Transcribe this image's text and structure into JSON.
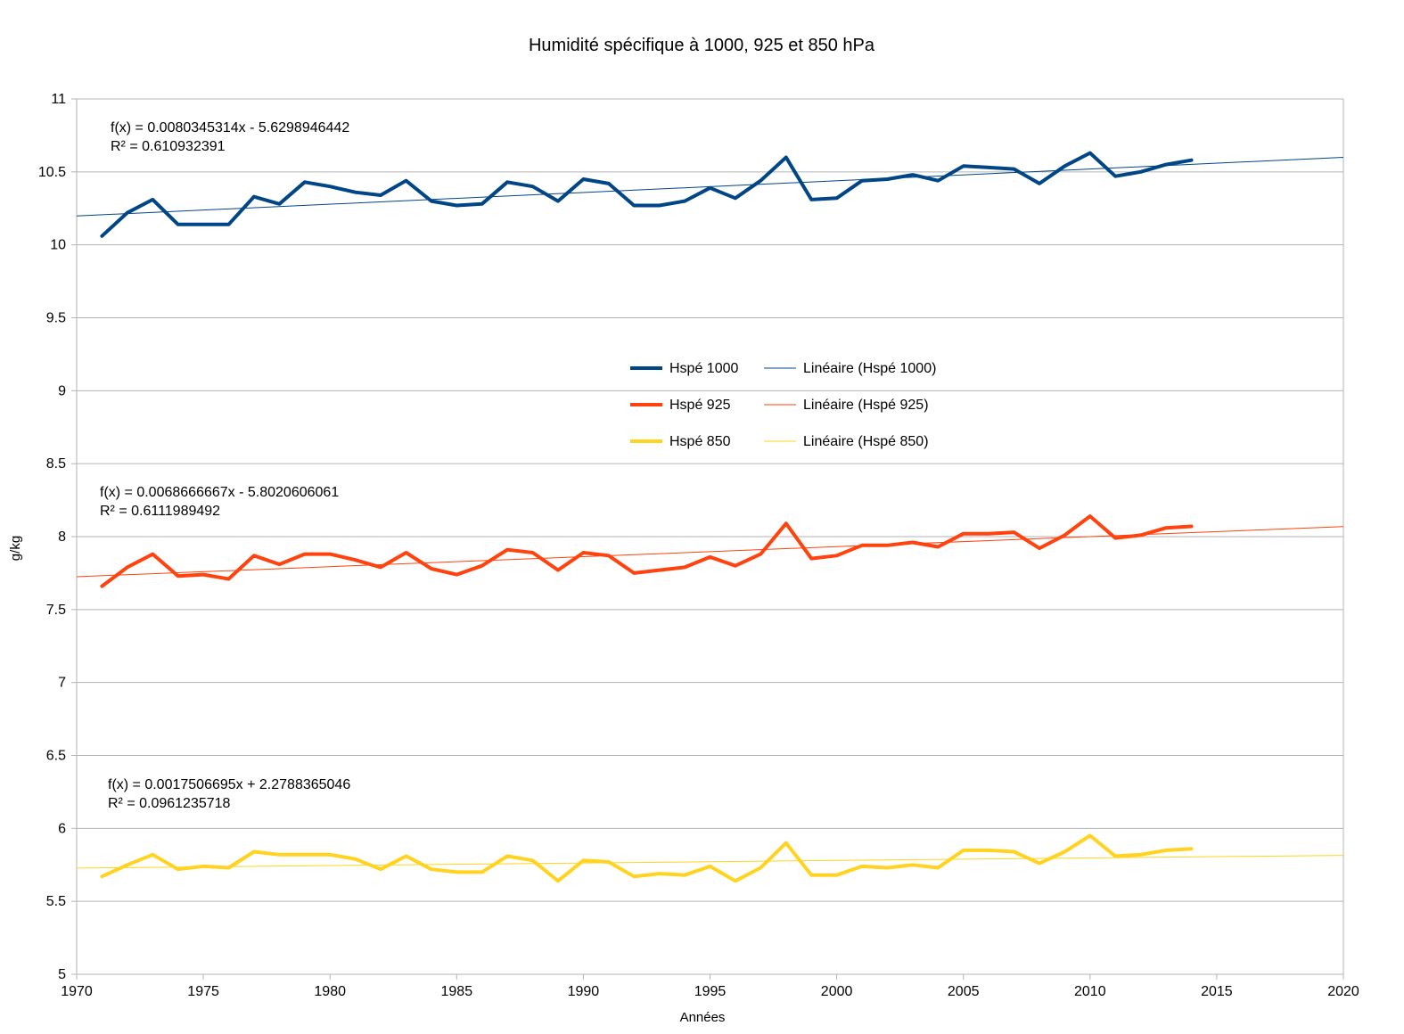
{
  "chart_data": {
    "type": "line",
    "title": "Humidité spécifique à 1000, 925 et 850 hPa",
    "xlabel": "Années",
    "ylabel": "g/kg",
    "xlim": [
      1970,
      2020
    ],
    "ylim": [
      5,
      11
    ],
    "x_ticks": [
      1970,
      1975,
      1980,
      1985,
      1990,
      1995,
      2000,
      2005,
      2010,
      2015,
      2020
    ],
    "y_ticks": [
      5,
      5.5,
      6,
      6.5,
      7,
      7.5,
      8,
      8.5,
      9,
      9.5,
      10,
      10.5,
      11
    ],
    "grid": "horizontal",
    "legend_position": "center",
    "x": [
      1971,
      1972,
      1973,
      1974,
      1975,
      1976,
      1977,
      1978,
      1979,
      1980,
      1981,
      1982,
      1983,
      1984,
      1985,
      1986,
      1987,
      1988,
      1989,
      1990,
      1991,
      1992,
      1993,
      1994,
      1995,
      1996,
      1997,
      1998,
      1999,
      2000,
      2001,
      2002,
      2003,
      2004,
      2005,
      2006,
      2007,
      2008,
      2009,
      2010,
      2011,
      2012,
      2013,
      2014
    ],
    "series": [
      {
        "name": "Hspé 1000",
        "color": "#004586",
        "values": [
          10.06,
          10.22,
          10.31,
          10.14,
          10.14,
          10.14,
          10.33,
          10.28,
          10.43,
          10.4,
          10.36,
          10.34,
          10.44,
          10.3,
          10.27,
          10.28,
          10.43,
          10.4,
          10.3,
          10.45,
          10.42,
          10.27,
          10.27,
          10.3,
          10.39,
          10.32,
          10.44,
          10.6,
          10.31,
          10.32,
          10.44,
          10.45,
          10.48,
          10.44,
          10.54,
          10.53,
          10.52,
          10.42,
          10.54,
          10.63,
          10.47,
          10.5,
          10.55,
          10.58
        ]
      },
      {
        "name": "Hspé 925",
        "color": "#ff420e",
        "values": [
          7.66,
          7.79,
          7.88,
          7.73,
          7.74,
          7.71,
          7.87,
          7.81,
          7.88,
          7.88,
          7.84,
          7.79,
          7.89,
          7.78,
          7.74,
          7.8,
          7.91,
          7.89,
          7.77,
          7.89,
          7.87,
          7.75,
          7.77,
          7.79,
          7.86,
          7.8,
          7.88,
          8.09,
          7.85,
          7.87,
          7.94,
          7.94,
          7.96,
          7.93,
          8.02,
          8.02,
          8.03,
          7.92,
          8.01,
          8.14,
          7.99,
          8.01,
          8.06,
          8.07
        ]
      },
      {
        "name": "Hspé 850",
        "color": "#ffd320",
        "values": [
          5.67,
          5.75,
          5.82,
          5.72,
          5.74,
          5.73,
          5.84,
          5.82,
          5.82,
          5.82,
          5.79,
          5.72,
          5.81,
          5.72,
          5.7,
          5.7,
          5.81,
          5.78,
          5.64,
          5.78,
          5.77,
          5.67,
          5.69,
          5.68,
          5.74,
          5.64,
          5.73,
          5.9,
          5.68,
          5.68,
          5.74,
          5.73,
          5.75,
          5.73,
          5.85,
          5.85,
          5.84,
          5.76,
          5.84,
          5.95,
          5.81,
          5.82,
          5.85,
          5.86
        ]
      }
    ],
    "trendlines": [
      {
        "name": "Linéaire (Hspé 1000)",
        "color": "#004586",
        "slope": 0.0080345314,
        "intercept": -5.6298946442,
        "equation": "f(x) = 0.0080345314x - 5.6298946442",
        "r2": "R² = 0.610932391"
      },
      {
        "name": "Linéaire (Hspé 925)",
        "color": "#ff420e",
        "slope": 0.0068666667,
        "intercept": -5.8020606061,
        "equation": "f(x) = 0.0068666667x - 5.8020606061",
        "r2": "R² = 0.6111989492"
      },
      {
        "name": "Linéaire (Hspé 850)",
        "color": "#ffd320",
        "slope": 0.0017506695,
        "intercept": 2.2788365046,
        "equation": "f(x) = 0.0017506695x + 2.2788365046",
        "r2": "R² = 0.0961235718"
      }
    ]
  }
}
